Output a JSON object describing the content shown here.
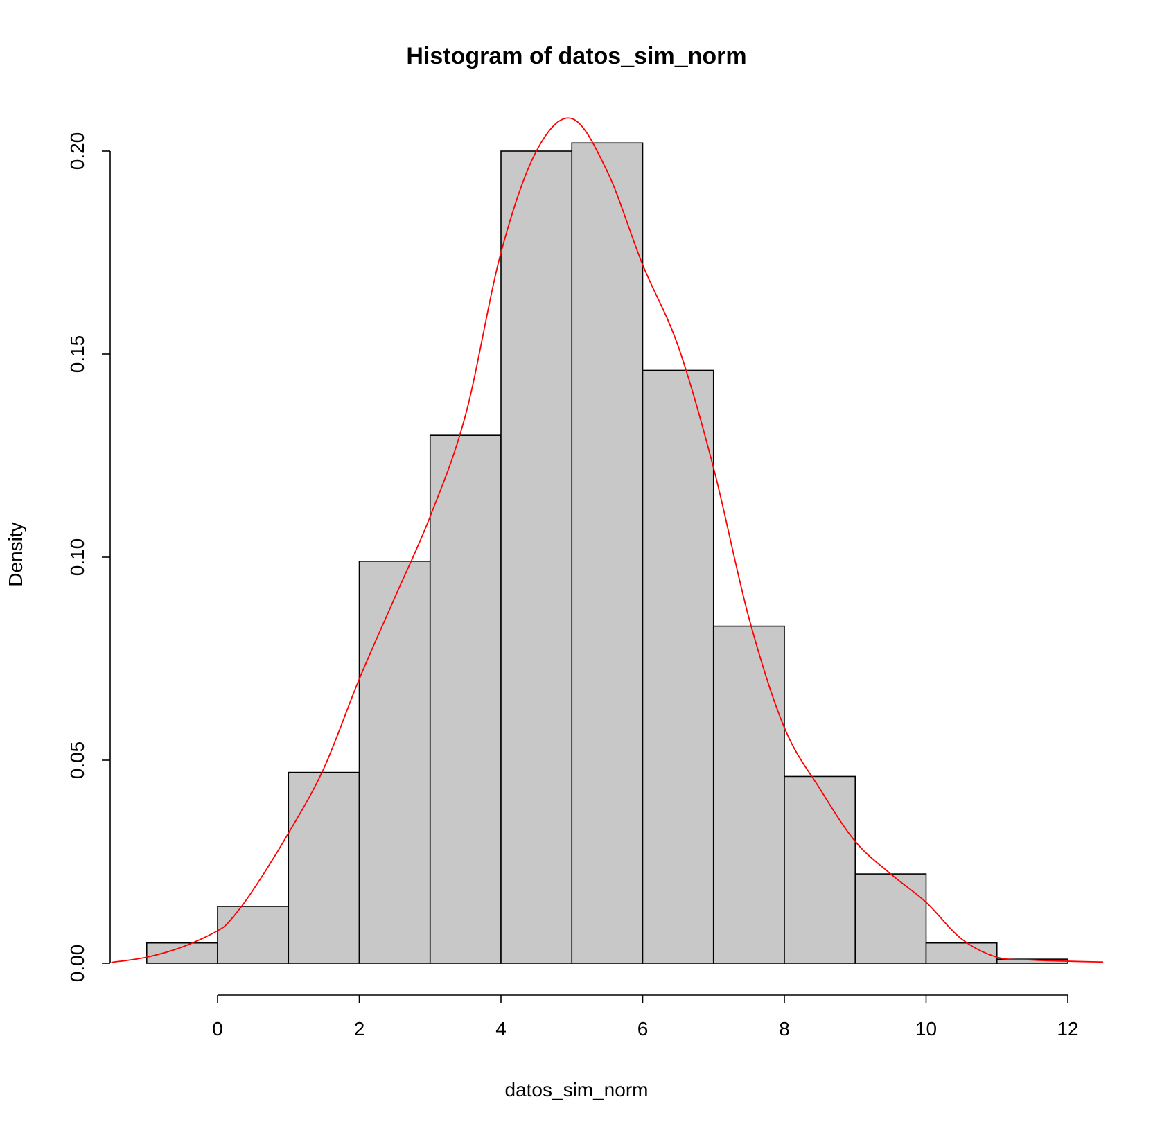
{
  "chart_data": {
    "type": "bar",
    "title": "Histogram of datos_sim_norm",
    "xlabel": "datos_sim_norm",
    "ylabel": "Density",
    "xlim": [
      -1.5,
      12.5
    ],
    "ylim": [
      0,
      0.2
    ],
    "x_ticks": [
      0,
      2,
      4,
      6,
      8,
      10,
      12
    ],
    "x_tick_labels": [
      "0",
      "2",
      "4",
      "6",
      "8",
      "10",
      "12"
    ],
    "y_ticks": [
      0.0,
      0.05,
      0.1,
      0.15,
      0.2
    ],
    "y_tick_labels": [
      "0.00",
      "0.05",
      "0.10",
      "0.15",
      "0.20"
    ],
    "grid": false,
    "bins": [
      {
        "x0": -1,
        "x1": 0,
        "density": 0.005
      },
      {
        "x0": 0,
        "x1": 1,
        "density": 0.014
      },
      {
        "x0": 1,
        "x1": 2,
        "density": 0.047
      },
      {
        "x0": 2,
        "x1": 3,
        "density": 0.099
      },
      {
        "x0": 3,
        "x1": 4,
        "density": 0.13
      },
      {
        "x0": 4,
        "x1": 5,
        "density": 0.2
      },
      {
        "x0": 5,
        "x1": 6,
        "density": 0.202
      },
      {
        "x0": 6,
        "x1": 7,
        "density": 0.146
      },
      {
        "x0": 7,
        "x1": 8,
        "density": 0.083
      },
      {
        "x0": 8,
        "x1": 9,
        "density": 0.046
      },
      {
        "x0": 9,
        "x1": 10,
        "density": 0.022
      },
      {
        "x0": 10,
        "x1": 11,
        "density": 0.005
      },
      {
        "x0": 11,
        "x1": 12,
        "density": 0.001
      }
    ],
    "density_curve": {
      "color": "#ff0000",
      "points": [
        [
          -1.5,
          0.0002
        ],
        [
          -1.0,
          0.0015
        ],
        [
          -0.5,
          0.004
        ],
        [
          0.0,
          0.008
        ],
        [
          0.2,
          0.011
        ],
        [
          0.5,
          0.018
        ],
        [
          1.0,
          0.032
        ],
        [
          1.5,
          0.048
        ],
        [
          2.0,
          0.07
        ],
        [
          2.5,
          0.09
        ],
        [
          3.0,
          0.11
        ],
        [
          3.5,
          0.135
        ],
        [
          4.0,
          0.175
        ],
        [
          4.5,
          0.2
        ],
        [
          5.0,
          0.208
        ],
        [
          5.5,
          0.195
        ],
        [
          6.0,
          0.172
        ],
        [
          6.5,
          0.152
        ],
        [
          7.0,
          0.122
        ],
        [
          7.5,
          0.085
        ],
        [
          8.0,
          0.058
        ],
        [
          8.5,
          0.043
        ],
        [
          9.0,
          0.03
        ],
        [
          9.5,
          0.022
        ],
        [
          10.0,
          0.015
        ],
        [
          10.5,
          0.006
        ],
        [
          11.0,
          0.0015
        ],
        [
          11.5,
          0.0008
        ],
        [
          12.0,
          0.0005
        ],
        [
          12.5,
          0.0003
        ]
      ]
    },
    "bar_fill": "#c8c8c8",
    "bar_stroke": "#000000"
  }
}
